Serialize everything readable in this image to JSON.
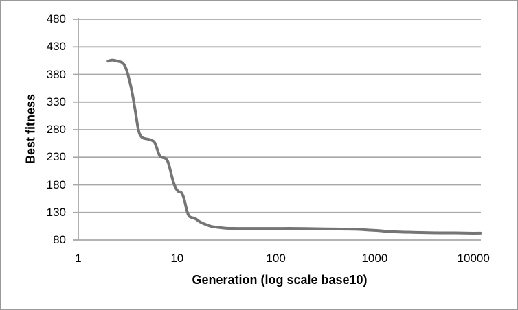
{
  "figure": {
    "background": "#ffffff",
    "frame_color": "#9a9a9a"
  },
  "chart_data": {
    "type": "line",
    "title": "",
    "xlabel": "Generation (log scale base10)",
    "ylabel": "Best fitness",
    "x_scale": "log10",
    "xlim": [
      1,
      12000
    ],
    "ylim": [
      80,
      480
    ],
    "x_ticks": [
      1,
      10,
      100,
      1000,
      10000
    ],
    "y_ticks": [
      80,
      130,
      180,
      230,
      280,
      330,
      380,
      430,
      480
    ],
    "grid": "horizontal",
    "legend_position": "none",
    "colors": {
      "series": "#757575",
      "gridline": "#a8a8a8",
      "axis": "#a8a8a8",
      "text": "#000000"
    },
    "series": [
      {
        "name": "Best fitness",
        "line_width": 4,
        "points": [
          [
            2,
            404
          ],
          [
            2.2,
            406
          ],
          [
            2.5,
            404
          ],
          [
            2.8,
            401
          ],
          [
            3,
            393
          ],
          [
            3.2,
            378
          ],
          [
            3.5,
            348
          ],
          [
            3.8,
            310
          ],
          [
            4,
            285
          ],
          [
            4.2,
            271
          ],
          [
            4.5,
            265
          ],
          [
            5,
            263
          ],
          [
            5.5,
            261
          ],
          [
            5.9,
            257
          ],
          [
            6.2,
            248
          ],
          [
            6.6,
            234
          ],
          [
            7,
            230
          ],
          [
            7.6,
            228
          ],
          [
            8.1,
            221
          ],
          [
            8.6,
            204
          ],
          [
            9.1,
            187
          ],
          [
            9.7,
            174
          ],
          [
            10.3,
            168
          ],
          [
            11,
            166
          ],
          [
            11.7,
            156
          ],
          [
            12.3,
            140
          ],
          [
            12.9,
            127
          ],
          [
            13.5,
            122
          ],
          [
            14.5,
            120
          ],
          [
            15.5,
            118
          ],
          [
            17,
            113
          ],
          [
            19,
            109
          ],
          [
            22,
            105
          ],
          [
            26,
            103
          ],
          [
            31,
            101.5
          ],
          [
            40,
            101
          ],
          [
            60,
            101
          ],
          [
            100,
            101
          ],
          [
            160,
            101
          ],
          [
            250,
            100.5
          ],
          [
            400,
            100
          ],
          [
            630,
            99.5
          ],
          [
            900,
            98
          ],
          [
            1100,
            97
          ],
          [
            1400,
            95.5
          ],
          [
            1800,
            94.5
          ],
          [
            2400,
            94
          ],
          [
            3200,
            93.5
          ],
          [
            4500,
            93
          ],
          [
            6500,
            93
          ],
          [
            9000,
            92.5
          ],
          [
            11800,
            92.5
          ]
        ]
      }
    ]
  }
}
